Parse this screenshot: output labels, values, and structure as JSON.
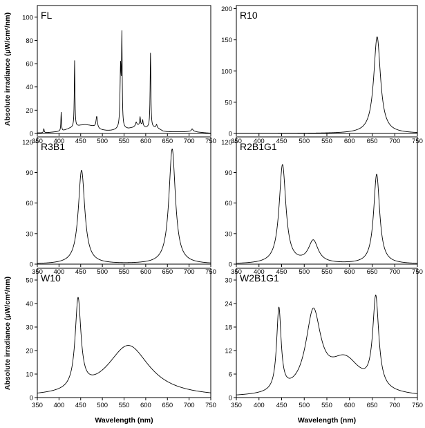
{
  "figure": {
    "ylabel": "Absolute irradiance (µW/cm²/nm)",
    "xlabel": "Wavelength (nm)"
  },
  "chart_data": [
    {
      "type": "line",
      "title": "FL",
      "xlim": [
        350,
        750
      ],
      "ylim": [
        0,
        110
      ],
      "yticks": [
        0,
        20,
        40,
        60,
        80,
        100
      ],
      "xticks": [
        350,
        400,
        450,
        500,
        550,
        600,
        650,
        700,
        750
      ],
      "baseline": [
        [
          360,
          0.5
        ],
        [
          375,
          0.8
        ],
        [
          395,
          1.5
        ],
        [
          410,
          2.5
        ],
        [
          425,
          4.5
        ],
        [
          440,
          6
        ],
        [
          450,
          7
        ],
        [
          460,
          7.5
        ],
        [
          470,
          7
        ],
        [
          480,
          6
        ],
        [
          490,
          4
        ],
        [
          500,
          3
        ],
        [
          510,
          2.5
        ],
        [
          520,
          2.5
        ],
        [
          530,
          3
        ],
        [
          540,
          4
        ],
        [
          550,
          4
        ],
        [
          560,
          4
        ],
        [
          570,
          5
        ],
        [
          580,
          7
        ],
        [
          590,
          7
        ],
        [
          600,
          5
        ],
        [
          610,
          5
        ],
        [
          620,
          5
        ],
        [
          630,
          4
        ],
        [
          640,
          2
        ],
        [
          650,
          1.5
        ],
        [
          670,
          1.5
        ],
        [
          690,
          1.5
        ],
        [
          710,
          2
        ],
        [
          720,
          1.2
        ],
        [
          740,
          0.5
        ],
        [
          750,
          0.3
        ]
      ],
      "peaks": [
        {
          "center": 365,
          "height": 3.5,
          "width": 1
        },
        {
          "center": 405,
          "height": 16,
          "width": 0.8
        },
        {
          "center": 436,
          "height": 57,
          "width": 0.9
        },
        {
          "center": 487,
          "height": 10,
          "width": 2
        },
        {
          "center": 542,
          "height": 52,
          "width": 1.5
        },
        {
          "center": 545,
          "height": 74,
          "width": 0.9
        },
        {
          "center": 578,
          "height": 3,
          "width": 1.5
        },
        {
          "center": 587,
          "height": 7,
          "width": 1
        },
        {
          "center": 593,
          "height": 5,
          "width": 1
        },
        {
          "center": 611,
          "height": 64,
          "width": 1
        },
        {
          "center": 625,
          "height": 3,
          "width": 1.5
        },
        {
          "center": 707,
          "height": 2,
          "width": 2
        }
      ]
    },
    {
      "type": "line",
      "title": "R10",
      "xlim": [
        350,
        750
      ],
      "ylim": [
        0,
        205
      ],
      "yticks": [
        0,
        50,
        100,
        150,
        200
      ],
      "xticks": [
        350,
        400,
        450,
        500,
        550,
        600,
        650,
        700,
        750
      ],
      "peaks": [
        {
          "center": 661,
          "height": 155,
          "width": 9
        }
      ]
    },
    {
      "type": "line",
      "title": "R3B1",
      "xlim": [
        350,
        750
      ],
      "ylim": [
        0,
        125
      ],
      "yticks": [
        0,
        30,
        60,
        90,
        120
      ],
      "xticks": [
        350,
        400,
        450,
        500,
        550,
        600,
        650,
        700,
        750
      ],
      "peaks": [
        {
          "center": 452,
          "height": 92,
          "width": 9
        },
        {
          "center": 661,
          "height": 113,
          "width": 9
        }
      ]
    },
    {
      "type": "line",
      "title": "R2B1G1",
      "xlim": [
        350,
        750
      ],
      "ylim": [
        0,
        125
      ],
      "yticks": [
        0,
        30,
        60,
        90,
        120
      ],
      "xticks": [
        350,
        400,
        450,
        500,
        550,
        600,
        650,
        700,
        750
      ],
      "peaks": [
        {
          "center": 452,
          "height": 97,
          "width": 9
        },
        {
          "center": 520,
          "height": 22,
          "width": 13
        },
        {
          "center": 660,
          "height": 88,
          "width": 8
        }
      ]
    },
    {
      "type": "line",
      "title": "W10",
      "xlim": [
        350,
        750
      ],
      "ylim": [
        0,
        55
      ],
      "yticks": [
        0,
        10,
        20,
        30,
        40,
        50
      ],
      "xticks": [
        350,
        400,
        450,
        500,
        550,
        600,
        650,
        700,
        750
      ],
      "xlabel": "Wavelength (nm)",
      "peaks": [
        {
          "center": 444,
          "height": 38,
          "width": 8
        },
        {
          "center": 560,
          "height": 22,
          "width": 60
        }
      ]
    },
    {
      "type": "line",
      "title": "W2B1G1",
      "xlim": [
        350,
        750
      ],
      "ylim": [
        0,
        33
      ],
      "yticks": [
        0,
        6,
        12,
        18,
        24,
        30
      ],
      "xticks": [
        350,
        400,
        450,
        500,
        550,
        600,
        650,
        700,
        750
      ],
      "xlabel": "Wavelength (nm)",
      "peaks": [
        {
          "center": 444,
          "height": 21,
          "width": 6
        },
        {
          "center": 520,
          "height": 20,
          "width": 20
        },
        {
          "center": 590,
          "height": 9,
          "width": 45
        },
        {
          "center": 658,
          "height": 23,
          "width": 8
        }
      ]
    }
  ]
}
